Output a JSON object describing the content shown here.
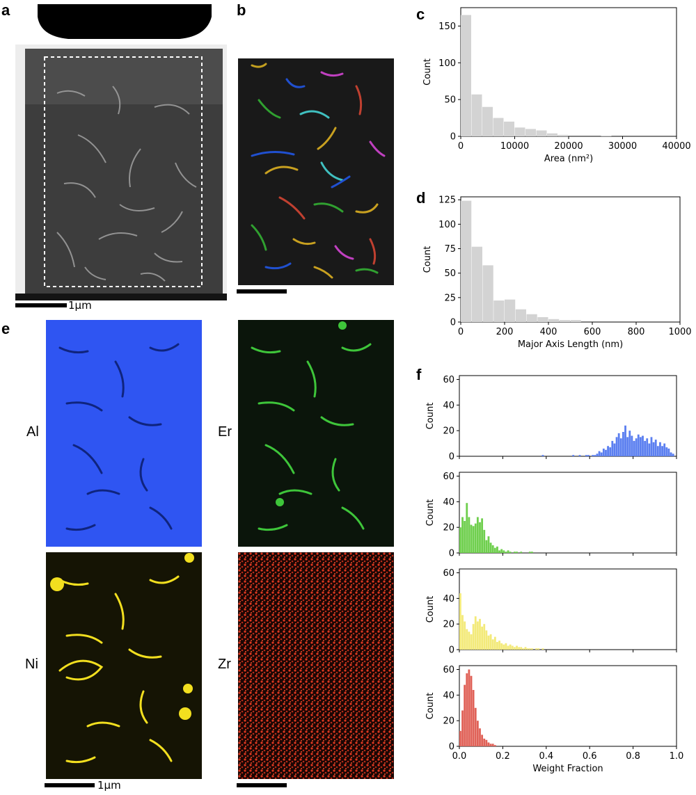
{
  "panel_labels": {
    "a": "a",
    "b": "b",
    "c": "c",
    "d": "d",
    "e": "e",
    "f": "f"
  },
  "scale_bars": {
    "a": "1µm",
    "e": "1µm"
  },
  "elements": {
    "al": "Al",
    "er": "Er",
    "ni": "Ni",
    "zr": "Zr"
  },
  "colors": {
    "al": "#2f55f2",
    "er": "#3ec53a",
    "ni": "#f2df1f",
    "zr": "#e03820",
    "hist_gray": "#d3d3d3",
    "f_blue": "#5b7ff0",
    "f_green": "#6fcf4e",
    "f_yellow": "#f3ea7a",
    "f_red": "#e06258"
  },
  "chart_data": [
    {
      "id": "c",
      "type": "bar",
      "xlabel": "Area (nm²)",
      "ylabel": "Count",
      "xlim": [
        0,
        40000
      ],
      "ylim": [
        0,
        175
      ],
      "xticks": [
        0,
        10000,
        20000,
        30000,
        40000
      ],
      "xtick_labels": [
        "0",
        "10000",
        "20000",
        "30000",
        "40000"
      ],
      "yticks": [
        0,
        50,
        100,
        150
      ],
      "ytick_labels": [
        "0",
        "50",
        "100",
        "150"
      ],
      "bin_width": 2000,
      "bins": [
        0,
        2000,
        4000,
        6000,
        8000,
        10000,
        12000,
        14000,
        16000,
        18000,
        26000
      ],
      "values": [
        165,
        57,
        40,
        25,
        20,
        12,
        10,
        8,
        4,
        2,
        1
      ]
    },
    {
      "id": "d",
      "type": "bar",
      "xlabel": "Major Axis Length (nm)",
      "ylabel": "Count",
      "xlim": [
        0,
        1000
      ],
      "ylim": [
        0,
        128
      ],
      "xticks": [
        0,
        200,
        400,
        600,
        800,
        1000
      ],
      "xtick_labels": [
        "0",
        "200",
        "400",
        "600",
        "800",
        "1000"
      ],
      "yticks": [
        0,
        25,
        50,
        75,
        100,
        125
      ],
      "ytick_labels": [
        "0",
        "25",
        "50",
        "75",
        "100",
        "125"
      ],
      "bin_width": 50,
      "bins": [
        0,
        50,
        100,
        150,
        200,
        250,
        300,
        350,
        400,
        450,
        500
      ],
      "values": [
        124,
        77,
        58,
        22,
        23,
        13,
        8,
        5,
        3,
        2,
        2
      ]
    },
    {
      "id": "f",
      "type": "bar",
      "xlabel": "Weight Fraction",
      "ylabel": "Count",
      "xlim": [
        0,
        1.0
      ],
      "ylim": [
        0,
        63
      ],
      "xticks": [
        0,
        0.2,
        0.4,
        0.6,
        0.8,
        1.0
      ],
      "xtick_labels": [
        "0.0",
        "0.2",
        "0.4",
        "0.6",
        "0.8",
        "1.0"
      ],
      "yticks": [
        0,
        20,
        40,
        60
      ],
      "ytick_labels": [
        "0",
        "20",
        "40",
        "60"
      ],
      "bin_width": 0.01,
      "series": [
        {
          "color": "#5b7ff0",
          "values": {
            "0.38": 1,
            "0.52": 1,
            "0.55": 1,
            "0.58": 1,
            "0.59": 1,
            "0.61": 1,
            "0.62": 1,
            "0.63": 2,
            "0.64": 4,
            "0.65": 3,
            "0.66": 6,
            "0.67": 5,
            "0.68": 8,
            "0.69": 7,
            "0.70": 12,
            "0.71": 10,
            "0.72": 15,
            "0.73": 18,
            "0.74": 14,
            "0.75": 19,
            "0.76": 24,
            "0.77": 15,
            "0.78": 20,
            "0.79": 16,
            "0.80": 12,
            "0.81": 14,
            "0.82": 17,
            "0.83": 15,
            "0.84": 16,
            "0.85": 12,
            "0.86": 14,
            "0.87": 10,
            "0.88": 15,
            "0.89": 11,
            "0.90": 13,
            "0.91": 8,
            "0.92": 11,
            "0.93": 8,
            "0.94": 10,
            "0.95": 7,
            "0.96": 6,
            "0.97": 3,
            "0.98": 2
          }
        },
        {
          "color": "#6fcf4e",
          "values": {
            "0.00": 20,
            "0.01": 28,
            "0.02": 25,
            "0.03": 39,
            "0.04": 28,
            "0.05": 22,
            "0.06": 21,
            "0.07": 23,
            "0.08": 28,
            "0.09": 24,
            "0.10": 27,
            "0.11": 18,
            "0.12": 10,
            "0.13": 13,
            "0.14": 8,
            "0.15": 6,
            "0.16": 4,
            "0.17": 5,
            "0.18": 2,
            "0.19": 3,
            "0.20": 2,
            "0.21": 1,
            "0.22": 2,
            "0.23": 1,
            "0.25": 1,
            "0.26": 1,
            "0.28": 1,
            "0.32": 1,
            "0.33": 1
          }
        },
        {
          "color": "#f3ea7a",
          "values": {
            "0.00": 44,
            "0.01": 27,
            "0.02": 22,
            "0.03": 16,
            "0.04": 14,
            "0.05": 12,
            "0.06": 20,
            "0.07": 26,
            "0.08": 22,
            "0.09": 24,
            "0.10": 18,
            "0.11": 20,
            "0.12": 15,
            "0.13": 11,
            "0.14": 12,
            "0.15": 8,
            "0.16": 10,
            "0.17": 6,
            "0.18": 7,
            "0.19": 5,
            "0.20": 4,
            "0.21": 5,
            "0.22": 3,
            "0.23": 4,
            "0.24": 3,
            "0.25": 2,
            "0.26": 3,
            "0.27": 2,
            "0.28": 2,
            "0.29": 1,
            "0.30": 2,
            "0.31": 1,
            "0.32": 1,
            "0.33": 1,
            "0.35": 1,
            "0.36": 1,
            "0.38": 1
          }
        },
        {
          "color": "#e06258",
          "values": {
            "0.00": 12,
            "0.01": 28,
            "0.02": 48,
            "0.03": 57,
            "0.04": 60,
            "0.05": 55,
            "0.06": 44,
            "0.07": 30,
            "0.08": 20,
            "0.09": 14,
            "0.10": 9,
            "0.11": 6,
            "0.12": 5,
            "0.13": 3,
            "0.14": 2,
            "0.15": 2,
            "0.16": 1
          }
        }
      ]
    }
  ]
}
